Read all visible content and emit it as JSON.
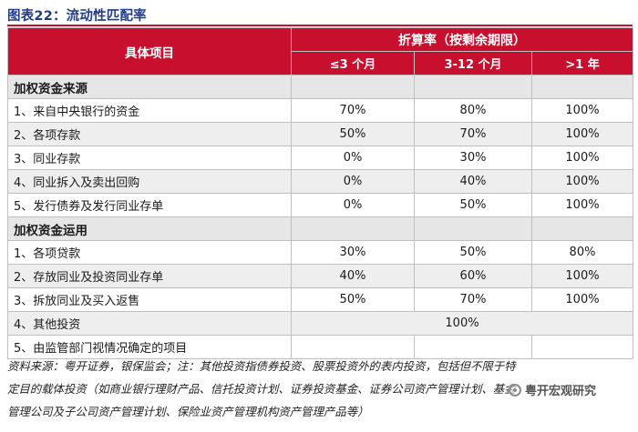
{
  "figure": {
    "title": "图表22：流动性匹配率"
  },
  "table": {
    "header": {
      "item": "具体项目",
      "group": "折算率（按剩余期限）",
      "columns": [
        "≤3 个月",
        "3-12 个月",
        ">1 年"
      ]
    },
    "sections": [
      {
        "label": "加权资金来源",
        "rows": [
          {
            "item": "1、来自中央银行的资金",
            "a": "70%",
            "b": "80%",
            "c": "100%"
          },
          {
            "item": "2、各项存款",
            "a": "50%",
            "b": "70%",
            "c": "100%"
          },
          {
            "item": "3、同业存款",
            "a": "0%",
            "b": "30%",
            "c": "100%"
          },
          {
            "item": "4、同业拆入及卖出回购",
            "a": "0%",
            "b": "40%",
            "c": "100%"
          },
          {
            "item": "5、发行债券及发行同业存单",
            "a": "0%",
            "b": "50%",
            "c": "100%"
          }
        ]
      },
      {
        "label": "加权资金运用",
        "rows": [
          {
            "item": "1、各项贷款",
            "a": "30%",
            "b": "50%",
            "c": "80%"
          },
          {
            "item": "2、存放同业及投资同业存单",
            "a": "40%",
            "b": "60%",
            "c": "100%"
          },
          {
            "item": "3、拆放同业及买入返售",
            "a": "50%",
            "b": "70%",
            "c": "100%"
          },
          {
            "item": "4、其他投资",
            "merged": "100%"
          },
          {
            "item": "5、由监管部门视情况确定的项目"
          }
        ]
      }
    ]
  },
  "source_note": {
    "lines": [
      "资料来源：粤开证券，银保监会；注：其他投资指债券投资、股票投资外的表内投资，包括但不限于特",
      "定目的载体投资（如商业银行理财产品、信托投资计划、证券投资基金、证券公司资产管理计划、基金",
      "管理公司及子公司资产管理计划、保险业资产管理机构资产管理产品等）"
    ]
  },
  "watermark": {
    "text": "粤开宏观研究",
    "icon": "wechat-icon"
  }
}
